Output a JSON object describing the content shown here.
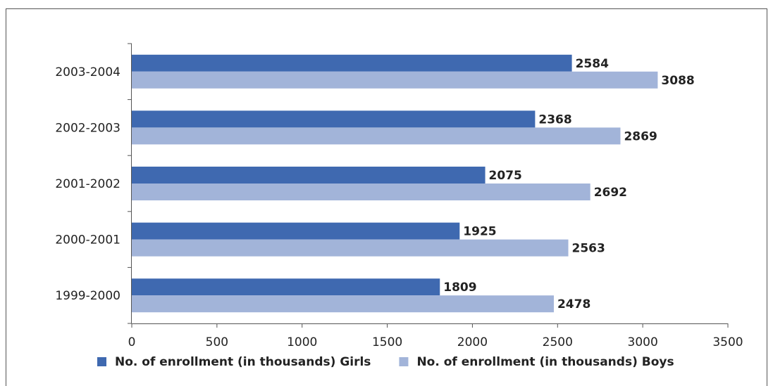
{
  "chart_data": {
    "type": "bar",
    "orientation": "horizontal",
    "categories": [
      "1999-2000",
      "2000-2001",
      "2001-2002",
      "2002-2003",
      "2003-2004"
    ],
    "series": [
      {
        "name": "No. of enrollment (in thousands) Girls",
        "values": [
          1809,
          1925,
          2075,
          2368,
          2584
        ],
        "color": "#3f69b0"
      },
      {
        "name": "No. of enrollment (in thousands) Boys",
        "values": [
          2478,
          2563,
          2692,
          2869,
          3088
        ],
        "color": "#a2b4d9"
      }
    ],
    "xlim": [
      0,
      3500
    ],
    "x_ticks": [
      "0",
      "500",
      "1000",
      "1500",
      "2000",
      "2500",
      "3000",
      "3500"
    ],
    "grid": false,
    "legend_position": "bottom",
    "title": "",
    "xlabel": "",
    "ylabel": ""
  }
}
